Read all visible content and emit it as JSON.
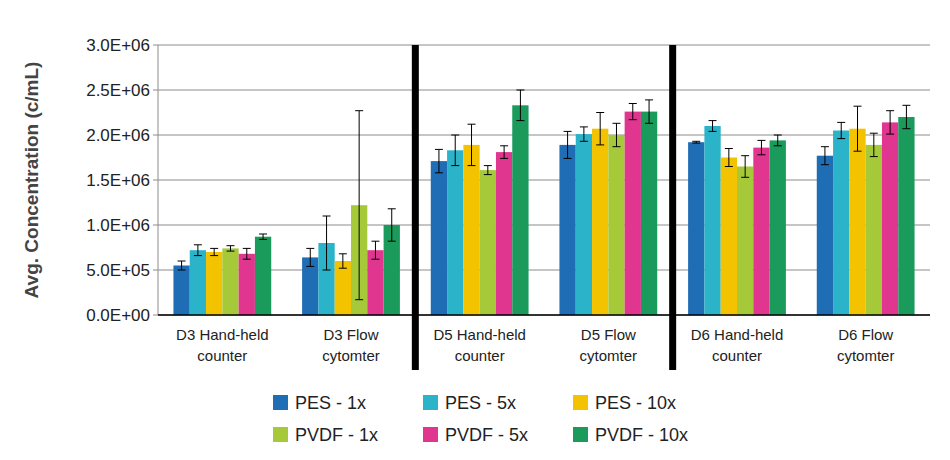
{
  "chart_data": {
    "type": "bar",
    "y_label": "Avg. Concentration (c/mL)",
    "categories": [
      "D3 Hand-held counter",
      "D3 Flow cytomter",
      "D5 Hand-held counter",
      "D5 Flow cytomter",
      "D6 Hand-held counter",
      "D6 Flow cytomter"
    ],
    "series": [
      {
        "name": "PES - 1x",
        "color": "#1f6db5",
        "values": [
          550000,
          640000,
          1710000,
          1890000,
          1920000,
          1770000
        ],
        "errors": [
          50000,
          100000,
          130000,
          150000,
          10000,
          100000
        ]
      },
      {
        "name": "PES - 5x",
        "color": "#2bb3c9",
        "values": [
          720000,
          800000,
          1830000,
          2010000,
          2100000,
          2050000
        ],
        "errors": [
          60000,
          300000,
          170000,
          80000,
          60000,
          90000
        ]
      },
      {
        "name": "PES - 10x",
        "color": "#f4c300",
        "values": [
          700000,
          600000,
          1890000,
          2070000,
          1750000,
          2070000
        ],
        "errors": [
          40000,
          80000,
          230000,
          180000,
          100000,
          250000
        ]
      },
      {
        "name": "PVDF - 1x",
        "color": "#a6c93a",
        "values": [
          740000,
          1220000,
          1610000,
          2000000,
          1650000,
          1890000
        ],
        "errors": [
          30000,
          1050000,
          50000,
          130000,
          120000,
          130000
        ]
      },
      {
        "name": "PVDF - 5x",
        "color": "#e0368f",
        "values": [
          680000,
          720000,
          1810000,
          2260000,
          1860000,
          2140000
        ],
        "errors": [
          60000,
          100000,
          70000,
          90000,
          80000,
          130000
        ]
      },
      {
        "name": "PVDF - 10x",
        "color": "#1a9a5b",
        "values": [
          870000,
          1000000,
          2330000,
          2260000,
          1940000,
          2200000
        ],
        "errors": [
          30000,
          180000,
          170000,
          130000,
          60000,
          130000
        ]
      }
    ],
    "ylim": [
      0,
      3000000
    ],
    "yticks": [
      {
        "value": 0,
        "label": "0.0E+00"
      },
      {
        "value": 500000,
        "label": "5.0E+05"
      },
      {
        "value": 1000000,
        "label": "1.0E+06"
      },
      {
        "value": 1500000,
        "label": "1.5E+06"
      },
      {
        "value": 2000000,
        "label": "2.0E+06"
      },
      {
        "value": 2500000,
        "label": "2.5E+06"
      },
      {
        "value": 3000000,
        "label": "3.0E+06"
      }
    ],
    "grid": true,
    "legend": "bottom"
  }
}
